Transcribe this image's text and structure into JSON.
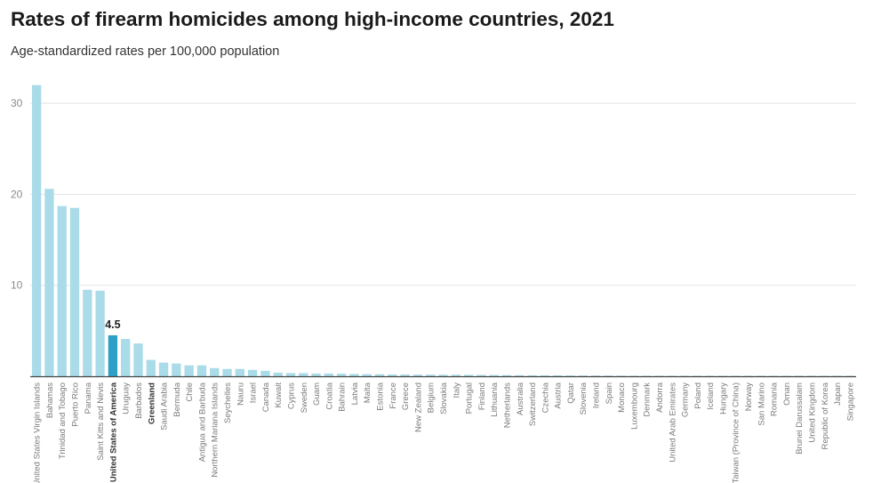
{
  "title": "Rates of firearm homicides among high-income countries, 2021",
  "subtitle": "Age-standardized rates per 100,000 population",
  "colors": {
    "bar": "#a9dbe9",
    "highlight": "#2e9fc7",
    "grid": "#e3e3e3",
    "axis": "#444444"
  },
  "chart_data": {
    "type": "bar",
    "title": "Rates of firearm homicides among high-income countries, 2021",
    "subtitle": "Age-standardized rates per 100,000 population",
    "xlabel": "",
    "ylabel": "",
    "ylim": [
      0,
      30
    ],
    "yticks": [
      10,
      20,
      30
    ],
    "grid": true,
    "highlight": "United States of America",
    "bold_categories": [
      "United States of America",
      "Greenland"
    ],
    "data_labels": [
      {
        "category": "United States of America",
        "text": "4.5"
      }
    ],
    "categories": [
      "United States Virgin Islands",
      "Bahamas",
      "Trinidad and Tobago",
      "Puerto Rico",
      "Panama",
      "Saint Kitts and Nevis",
      "United States of America",
      "Uruguay",
      "Barbados",
      "Greenland",
      "Saudi Arabia",
      "Bermuda",
      "Chile",
      "Antigua and Barbuda",
      "Northern Mariana Islands",
      "Seychelles",
      "Nauru",
      "Israel",
      "Canada",
      "Kuwait",
      "Cyprus",
      "Sweden",
      "Guam",
      "Croatia",
      "Bahrain",
      "Latvia",
      "Malta",
      "Estonia",
      "France",
      "Greece",
      "New Zealand",
      "Belgium",
      "Slovakia",
      "Italy",
      "Portugal",
      "Finland",
      "Lithuania",
      "Netherlands",
      "Australia",
      "Switzerland",
      "Czechia",
      "Austria",
      "Qatar",
      "Slovenia",
      "Ireland",
      "Spain",
      "Monaco",
      "Luxembourg",
      "Denmark",
      "Andorra",
      "United Arab Emirates",
      "Germany",
      "Poland",
      "Iceland",
      "Hungary",
      "Taiwan (Province of China)",
      "Norway",
      "San Marino",
      "Romania",
      "Oman",
      "Brunei Darussalam",
      "United Kingdom",
      "Republic of Korea",
      "Japan",
      "Singapore"
    ],
    "values": [
      32.0,
      20.6,
      18.7,
      18.5,
      9.5,
      9.4,
      4.5,
      4.1,
      3.6,
      1.8,
      1.5,
      1.4,
      1.2,
      1.2,
      0.9,
      0.8,
      0.8,
      0.7,
      0.6,
      0.4,
      0.35,
      0.35,
      0.3,
      0.3,
      0.28,
      0.25,
      0.23,
      0.22,
      0.2,
      0.2,
      0.18,
      0.18,
      0.17,
      0.17,
      0.16,
      0.15,
      0.14,
      0.13,
      0.12,
      0.11,
      0.1,
      0.1,
      0.09,
      0.09,
      0.08,
      0.08,
      0.07,
      0.06,
      0.05,
      0.04,
      0.04,
      0.04,
      0.03,
      0.03,
      0.03,
      0.02,
      0.02,
      0.02,
      0.02,
      0.02,
      0.01,
      0.01,
      0.01,
      0.01,
      0.01
    ]
  }
}
